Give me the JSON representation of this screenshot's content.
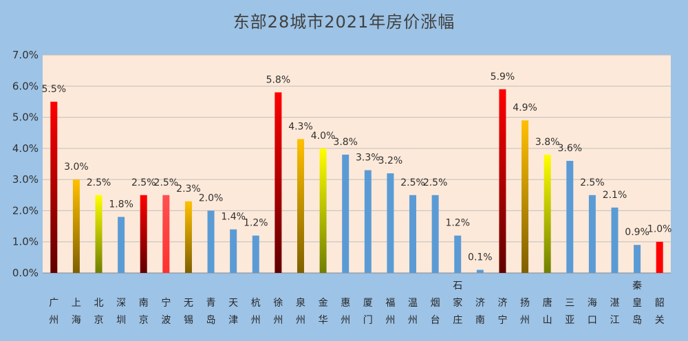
{
  "chart_data": {
    "type": "bar",
    "title": "东部28城市2021年房价涨幅",
    "xlabel": "",
    "ylabel": "",
    "ylim": [
      0,
      7
    ],
    "yticks": [
      0,
      1,
      2,
      3,
      4,
      5,
      6,
      7
    ],
    "ytick_labels": [
      "0.0%",
      "1.0%",
      "2.0%",
      "3.0%",
      "4.0%",
      "5.0%",
      "6.0%",
      "7.0%"
    ],
    "grid": true,
    "legend": "none",
    "categories": [
      "广州",
      "上海",
      "北京",
      "深圳",
      "南京",
      "宁波",
      "无锡",
      "青岛",
      "天津",
      "杭州",
      "徐州",
      "泉州",
      "金华",
      "惠州",
      "厦门",
      "福州",
      "温州",
      "烟台",
      "石家庄",
      "济南",
      "济宁",
      "扬州",
      "唐山",
      "三亚",
      "海口",
      "湛江",
      "秦皇岛",
      "韶关"
    ],
    "values": [
      5.5,
      3.0,
      2.5,
      1.8,
      2.5,
      2.5,
      2.3,
      2.0,
      1.4,
      1.2,
      5.8,
      4.3,
      4.0,
      3.8,
      3.3,
      3.2,
      2.5,
      2.5,
      1.2,
      0.1,
      5.9,
      4.9,
      3.8,
      3.6,
      2.5,
      2.1,
      0.9,
      1.0
    ],
    "data_labels": [
      "5.5%",
      "3.0%",
      "2.5%",
      "1.8%",
      "2.5%",
      "2.5%",
      "2.3%",
      "2.0%",
      "1.4%",
      "1.2%",
      "5.8%",
      "4.3%",
      "4.0%",
      "3.8%",
      "3.3%",
      "3.2%",
      "2.5%",
      "2.5%",
      "1.2%",
      "0.1%",
      "5.9%",
      "4.9%",
      "3.8%",
      "3.6%",
      "2.5%",
      "2.1%",
      "0.9%",
      "1.0%"
    ],
    "bar_styles": [
      "red",
      "gold",
      "yellow",
      "blue",
      "red",
      "pink",
      "gold",
      "blue",
      "blue",
      "blue",
      "red",
      "gold",
      "yellow",
      "blue",
      "blue",
      "blue",
      "blue",
      "blue",
      "blue",
      "blue",
      "red",
      "gold",
      "yellow",
      "blue",
      "blue",
      "blue",
      "blue",
      "solidred"
    ]
  },
  "colors": {
    "background": "#9dc3e6",
    "plot_area": "#fde9d9",
    "grid": "#bfbfbf",
    "blue": "#5b9bd5",
    "red_top": "#ff0000",
    "red_bottom": "#600000",
    "gold_top": "#ffc000",
    "gold_bottom": "#7f6000",
    "yellow_top": "#ffff00",
    "yellow_bottom": "#6f7f00",
    "pink_top": "#ff5050",
    "pink_bottom": "#ff3030",
    "solid_red": "#ff0000"
  }
}
